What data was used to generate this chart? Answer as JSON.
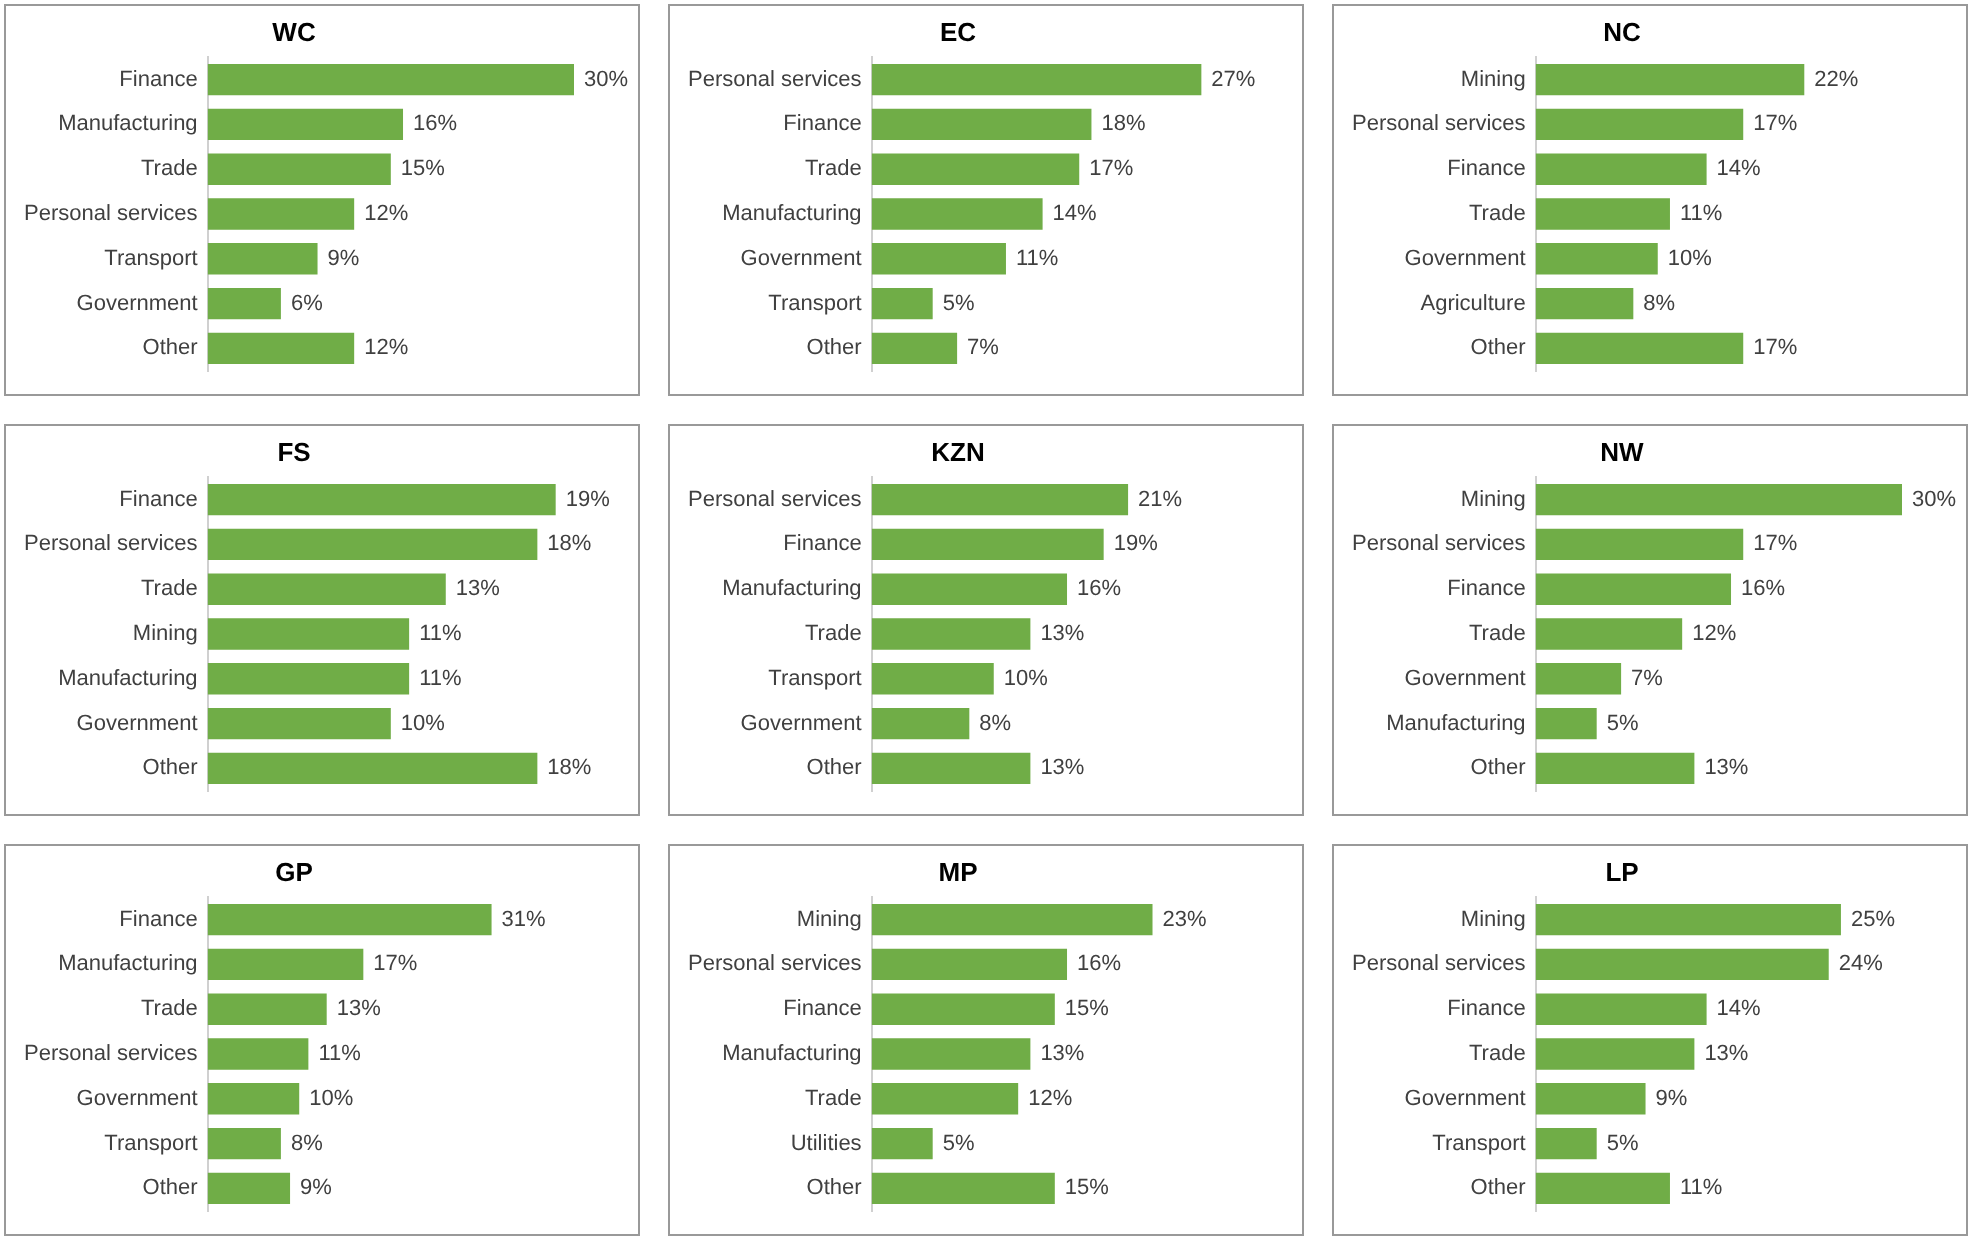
{
  "chart_data": [
    {
      "type": "bar",
      "orientation": "horizontal",
      "title": "WC",
      "categories": [
        "Finance",
        "Manufacturing",
        "Trade",
        "Personal services",
        "Transport",
        "Government",
        "Other"
      ],
      "values": [
        30,
        16,
        15,
        12,
        9,
        6,
        12
      ],
      "value_labels": [
        "30%",
        "16%",
        "15%",
        "12%",
        "9%",
        "6%",
        "12%"
      ],
      "color": "#70ad47"
    },
    {
      "type": "bar",
      "orientation": "horizontal",
      "title": "EC",
      "categories": [
        "Personal services",
        "Finance",
        "Trade",
        "Manufacturing",
        "Government",
        "Transport",
        "Other"
      ],
      "values": [
        27,
        18,
        17,
        14,
        11,
        5,
        7
      ],
      "value_labels": [
        "27%",
        "18%",
        "17%",
        "14%",
        "11%",
        "5%",
        "7%"
      ],
      "color": "#70ad47"
    },
    {
      "type": "bar",
      "orientation": "horizontal",
      "title": "NC",
      "categories": [
        "Mining",
        "Personal services",
        "Finance",
        "Trade",
        "Government",
        "Agriculture",
        "Other"
      ],
      "values": [
        22,
        17,
        14,
        11,
        10,
        8,
        17
      ],
      "value_labels": [
        "22%",
        "17%",
        "14%",
        "11%",
        "10%",
        "8%",
        "17%"
      ],
      "color": "#70ad47"
    },
    {
      "type": "bar",
      "orientation": "horizontal",
      "title": "FS",
      "categories": [
        "Finance",
        "Personal services",
        "Trade",
        "Mining",
        "Manufacturing",
        "Government",
        "Other"
      ],
      "values": [
        19,
        18,
        13,
        11,
        11,
        10,
        18
      ],
      "value_labels": [
        "19%",
        "18%",
        "13%",
        "11%",
        "11%",
        "10%",
        "18%"
      ],
      "color": "#70ad47"
    },
    {
      "type": "bar",
      "orientation": "horizontal",
      "title": "KZN",
      "categories": [
        "Personal services",
        "Finance",
        "Manufacturing",
        "Trade",
        "Transport",
        "Government",
        "Other"
      ],
      "values": [
        21,
        19,
        16,
        13,
        10,
        8,
        13
      ],
      "value_labels": [
        "21%",
        "19%",
        "16%",
        "13%",
        "10%",
        "8%",
        "13%"
      ],
      "color": "#70ad47"
    },
    {
      "type": "bar",
      "orientation": "horizontal",
      "title": "NW",
      "categories": [
        "Mining",
        "Personal services",
        "Finance",
        "Trade",
        "Government",
        "Manufacturing",
        "Other"
      ],
      "values": [
        30,
        17,
        16,
        12,
        7,
        5,
        13
      ],
      "value_labels": [
        "30%",
        "17%",
        "16%",
        "12%",
        "7%",
        "5%",
        "13%"
      ],
      "color": "#70ad47"
    },
    {
      "type": "bar",
      "orientation": "horizontal",
      "title": "GP",
      "categories": [
        "Finance",
        "Manufacturing",
        "Trade",
        "Personal services",
        "Government",
        "Transport",
        "Other"
      ],
      "values": [
        31,
        17,
        13,
        11,
        10,
        8,
        9
      ],
      "value_labels": [
        "31%",
        "17%",
        "13%",
        "11%",
        "10%",
        "8%",
        "9%"
      ],
      "color": "#70ad47"
    },
    {
      "type": "bar",
      "orientation": "horizontal",
      "title": "MP",
      "categories": [
        "Mining",
        "Personal services",
        "Finance",
        "Manufacturing",
        "Trade",
        "Utilities",
        "Other"
      ],
      "values": [
        23,
        16,
        15,
        13,
        12,
        5,
        15
      ],
      "value_labels": [
        "23%",
        "16%",
        "15%",
        "13%",
        "12%",
        "5%",
        "15%"
      ],
      "color": "#70ad47"
    },
    {
      "type": "bar",
      "orientation": "horizontal",
      "title": "LP",
      "categories": [
        "Mining",
        "Personal services",
        "Finance",
        "Trade",
        "Government",
        "Transport",
        "Other"
      ],
      "values": [
        25,
        24,
        14,
        13,
        9,
        5,
        11
      ],
      "value_labels": [
        "25%",
        "24%",
        "14%",
        "13%",
        "9%",
        "5%",
        "11%"
      ],
      "color": "#70ad47"
    }
  ]
}
